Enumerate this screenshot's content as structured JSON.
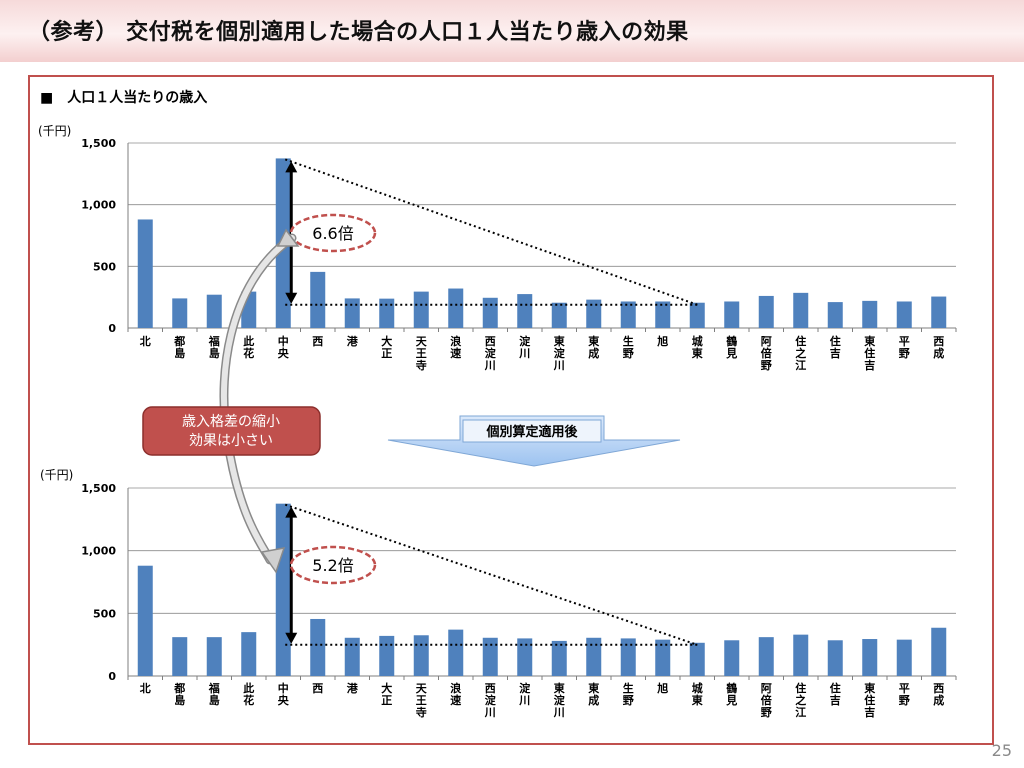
{
  "title": "（参考） 交付税を個別適用した場合の人口１人当たり歳入の効果",
  "section_title": "人口１人当たりの歳入",
  "section_bullet": "■",
  "callout_text": [
    "歳入格差の縮小",
    "効果は小さい"
  ],
  "arrow_label": "個別算定適用後",
  "page_number": "25",
  "colors": {
    "bar": "#4f81bd",
    "frame": "#c0504d",
    "callout_fill": "#c0504d",
    "ellipse": "#c0504d",
    "arrow_fill": "#9dc3f0"
  },
  "chart_data": [
    {
      "type": "bar",
      "unit_label": "(千円)",
      "ylim": [
        0,
        1500
      ],
      "yticks": [
        "0",
        "500",
        "1,000",
        "1,500"
      ],
      "ytick_values": [
        0,
        500,
        1000,
        1500
      ],
      "grid": true,
      "categories": [
        "北",
        "都島",
        "福島",
        "此花",
        "中央",
        "西",
        "港",
        "大正",
        "天王寺",
        "浪速",
        "西淀川",
        "淀川",
        "東淀川",
        "東成",
        "生野",
        "旭",
        "城東",
        "鶴見",
        "阿倍野",
        "住之江",
        "住吉",
        "東住吉",
        "平野",
        "西成"
      ],
      "values": [
        880,
        240,
        270,
        295,
        1375,
        455,
        240,
        238,
        295,
        320,
        245,
        275,
        205,
        230,
        215,
        215,
        205,
        215,
        260,
        285,
        210,
        220,
        215,
        255
      ],
      "ratio_label": "6.6倍"
    },
    {
      "type": "bar",
      "unit_label": "(千円)",
      "ylim": [
        0,
        1500
      ],
      "yticks": [
        "0",
        "500",
        "1,000",
        "1,500"
      ],
      "ytick_values": [
        0,
        500,
        1000,
        1500
      ],
      "grid": true,
      "categories": [
        "北",
        "都島",
        "福島",
        "此花",
        "中央",
        "西",
        "港",
        "大正",
        "天王寺",
        "浪速",
        "西淀川",
        "淀川",
        "東淀川",
        "東成",
        "生野",
        "旭",
        "城東",
        "鶴見",
        "阿倍野",
        "住之江",
        "住吉",
        "東住吉",
        "平野",
        "西成"
      ],
      "values": [
        880,
        310,
        310,
        350,
        1375,
        455,
        305,
        320,
        325,
        370,
        305,
        300,
        280,
        305,
        300,
        290,
        265,
        285,
        310,
        330,
        285,
        295,
        290,
        385
      ],
      "ratio_label": "5.2倍"
    }
  ]
}
